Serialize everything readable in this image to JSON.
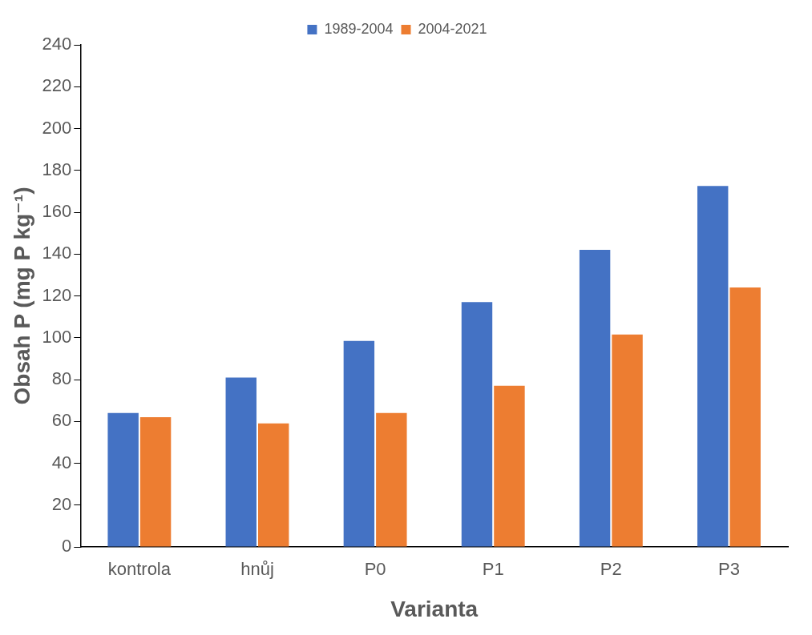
{
  "chart_data": {
    "type": "bar",
    "xlabel": "Varianta",
    "ylabel": "Obsah P (mg P kg⁻¹)",
    "categories": [
      "kontrola",
      "hnůj",
      "P0",
      "P1",
      "P2",
      "P3"
    ],
    "series": [
      {
        "name": "1989-2004",
        "color": "#4472c4",
        "values": [
          64,
          81,
          98.5,
          117,
          142,
          172.5
        ]
      },
      {
        "name": "2004-2021",
        "color": "#ed7d31",
        "values": [
          62,
          59,
          64,
          77,
          101.5,
          124
        ]
      }
    ],
    "ylim": [
      0,
      240
    ],
    "yticks": [
      0,
      20,
      40,
      60,
      80,
      100,
      120,
      140,
      160,
      180,
      200,
      220,
      240
    ],
    "grid": false,
    "legend": "top"
  }
}
